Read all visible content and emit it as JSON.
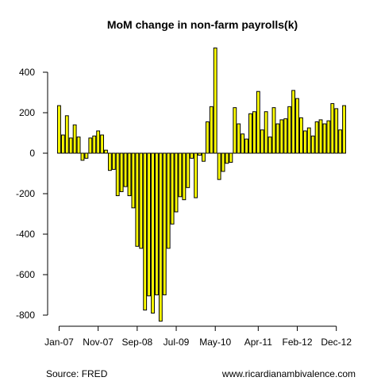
{
  "chart_data": {
    "type": "bar",
    "title": "MoM change in non-farm payrolls(k)",
    "xlabel": "",
    "ylabel": "",
    "ylim": [
      -850,
      530
    ],
    "yticks": [
      -800,
      -600,
      -400,
      -200,
      0,
      200,
      400
    ],
    "x_tick_labels": [
      "Jan-07",
      "Nov-07",
      "Sep-08",
      "Jul-09",
      "May-10",
      "Apr-11",
      "Feb-12",
      "Dec-12"
    ],
    "x_tick_index": [
      0,
      10,
      20,
      30,
      40,
      51,
      61,
      71
    ],
    "start_month": "Jan-07",
    "values": [
      235,
      90,
      185,
      75,
      140,
      80,
      -35,
      -25,
      75,
      85,
      110,
      90,
      15,
      -85,
      -80,
      -210,
      -190,
      -165,
      -210,
      -270,
      -460,
      -470,
      -775,
      -705,
      -790,
      -700,
      -830,
      -700,
      -470,
      -350,
      -290,
      -215,
      -230,
      -170,
      -25,
      -220,
      -10,
      -40,
      155,
      230,
      520,
      -130,
      -90,
      -50,
      -45,
      225,
      145,
      95,
      70,
      195,
      205,
      305,
      115,
      205,
      80,
      225,
      145,
      165,
      170,
      230,
      310,
      270,
      175,
      110,
      125,
      85,
      155,
      165,
      145,
      160,
      245,
      220,
      115,
      235
    ],
    "bar_color": "#ffff00",
    "bar_edge_color": "#000000",
    "grid": false
  },
  "footer": {
    "source": "Source: FRED",
    "website": "www.ricardianambivalence.com"
  }
}
